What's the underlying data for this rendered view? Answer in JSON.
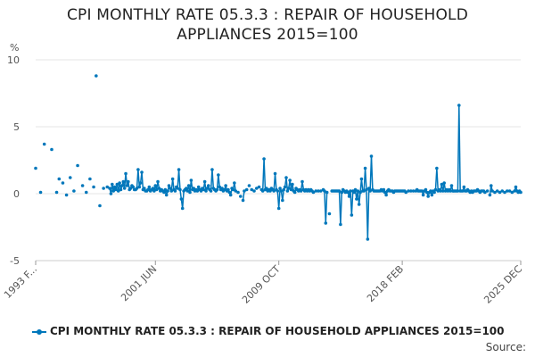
{
  "chart_data": {
    "type": "line",
    "title_lines": [
      "CPI MONTHLY RATE 05.3.3 : REPAIR OF HOUSEHOLD",
      "APPLIANCES 2015=100"
    ],
    "ylabel": "%",
    "ylim": [
      -5,
      10
    ],
    "yticks": [
      -5,
      0,
      5,
      10
    ],
    "xlim": [
      0,
      393
    ],
    "x_tick_labels": [
      {
        "index": 0,
        "label": "1993 F..."
      },
      {
        "index": 97,
        "label": "2001 JUN"
      },
      {
        "index": 197,
        "label": "2009 OCT"
      },
      {
        "index": 297,
        "label": "2018 FEB"
      },
      {
        "index": 393,
        "label": "2025 DEC"
      }
    ],
    "series": [
      {
        "name": "CPI MONTHLY RATE 05.3.3 : REPAIR OF HOUSEHOLD APPLIANCES 2015=100",
        "color": "#0077bb",
        "points": [
          [
            0,
            1.9
          ],
          [
            4,
            0.1
          ],
          [
            7,
            3.7
          ],
          [
            13,
            3.3
          ],
          [
            17,
            0.1
          ],
          [
            19,
            1.1
          ],
          [
            22,
            0.8
          ],
          [
            25,
            -0.1
          ],
          [
            28,
            1.2
          ],
          [
            31,
            0.2
          ],
          [
            34,
            2.1
          ],
          [
            38,
            0.6
          ],
          [
            41,
            0.1
          ],
          [
            44,
            1.1
          ],
          [
            47,
            0.5
          ],
          [
            49,
            8.8
          ],
          [
            52,
            -0.9
          ],
          [
            55,
            0.4
          ],
          [
            58,
            0.5
          ],
          [
            60,
            0.4
          ],
          [
            61,
            0.0
          ],
          [
            62,
            0.7
          ],
          [
            63,
            0.2
          ],
          [
            64,
            0.5
          ],
          [
            65,
            0.3
          ],
          [
            66,
            0.7
          ],
          [
            67,
            0.2
          ],
          [
            68,
            0.8
          ],
          [
            69,
            0.3
          ],
          [
            70,
            0.6
          ],
          [
            71,
            0.9
          ],
          [
            72,
            0.4
          ],
          [
            73,
            1.5
          ],
          [
            74,
            0.6
          ],
          [
            75,
            0.9
          ],
          [
            76,
            0.3
          ],
          [
            77,
            0.4
          ],
          [
            78,
            0.6
          ],
          [
            79,
            0.5
          ],
          [
            80,
            0.3
          ],
          [
            81,
            0.3
          ],
          [
            82,
            0.4
          ],
          [
            83,
            1.8
          ],
          [
            84,
            0.5
          ],
          [
            85,
            0.8
          ],
          [
            86,
            1.6
          ],
          [
            87,
            0.3
          ],
          [
            88,
            0.4
          ],
          [
            89,
            0.2
          ],
          [
            90,
            0.2
          ],
          [
            91,
            0.3
          ],
          [
            92,
            0.5
          ],
          [
            93,
            0.2
          ],
          [
            94,
            0.3
          ],
          [
            95,
            0.4
          ],
          [
            96,
            0.2
          ],
          [
            97,
            0.6
          ],
          [
            98,
            0.3
          ],
          [
            99,
            0.9
          ],
          [
            100,
            0.4
          ],
          [
            101,
            0.2
          ],
          [
            102,
            0.3
          ],
          [
            103,
            0.2
          ],
          [
            104,
            0.1
          ],
          [
            105,
            0.3
          ],
          [
            106,
            -0.1
          ],
          [
            107,
            0.2
          ],
          [
            108,
            0.6
          ],
          [
            109,
            0.4
          ],
          [
            110,
            0.2
          ],
          [
            111,
            1.1
          ],
          [
            112,
            0.3
          ],
          [
            113,
            0.2
          ],
          [
            114,
            0.5
          ],
          [
            115,
            0.4
          ],
          [
            116,
            1.8
          ],
          [
            117,
            0.3
          ],
          [
            118,
            -0.4
          ],
          [
            119,
            -1.1
          ],
          [
            120,
            0.2
          ],
          [
            121,
            0.3
          ],
          [
            122,
            0.4
          ],
          [
            123,
            0.2
          ],
          [
            124,
            0.6
          ],
          [
            125,
            0.1
          ],
          [
            126,
            1.0
          ],
          [
            127,
            0.3
          ],
          [
            128,
            0.4
          ],
          [
            129,
            0.2
          ],
          [
            130,
            0.3
          ],
          [
            131,
            0.2
          ],
          [
            132,
            0.5
          ],
          [
            133,
            0.3
          ],
          [
            134,
            0.2
          ],
          [
            135,
            0.4
          ],
          [
            136,
            0.3
          ],
          [
            137,
            0.9
          ],
          [
            138,
            0.2
          ],
          [
            139,
            0.4
          ],
          [
            140,
            0.6
          ],
          [
            141,
            0.3
          ],
          [
            142,
            0.2
          ],
          [
            143,
            1.8
          ],
          [
            144,
            0.4
          ],
          [
            145,
            0.3
          ],
          [
            146,
            0.2
          ],
          [
            147,
            0.3
          ],
          [
            148,
            1.4
          ],
          [
            149,
            0.5
          ],
          [
            150,
            0.3
          ],
          [
            151,
            0.4
          ],
          [
            152,
            0.2
          ],
          [
            153,
            0.3
          ],
          [
            154,
            0.6
          ],
          [
            155,
            0.2
          ],
          [
            156,
            0.3
          ],
          [
            157,
            0.1
          ],
          [
            158,
            -0.1
          ],
          [
            159,
            0.4
          ],
          [
            160,
            0.3
          ],
          [
            161,
            0.8
          ],
          [
            162,
            0.2
          ],
          [
            164,
            0.1
          ],
          [
            166,
            -0.2
          ],
          [
            168,
            -0.5
          ],
          [
            169,
            0.2
          ],
          [
            171,
            0.3
          ],
          [
            173,
            0.6
          ],
          [
            175,
            0.3
          ],
          [
            177,
            0.2
          ],
          [
            179,
            0.4
          ],
          [
            181,
            0.5
          ],
          [
            183,
            0.3
          ],
          [
            184,
            0.2
          ],
          [
            185,
            2.6
          ],
          [
            186,
            0.3
          ],
          [
            187,
            0.4
          ],
          [
            188,
            0.2
          ],
          [
            189,
            0.3
          ],
          [
            190,
            0.2
          ],
          [
            191,
            0.4
          ],
          [
            192,
            0.3
          ],
          [
            193,
            0.2
          ],
          [
            194,
            1.5
          ],
          [
            195,
            0.3
          ],
          [
            196,
            0.2
          ],
          [
            197,
            -1.1
          ],
          [
            198,
            0.4
          ],
          [
            199,
            0.2
          ],
          [
            200,
            -0.5
          ],
          [
            201,
            0.3
          ],
          [
            202,
            0.5
          ],
          [
            203,
            1.2
          ],
          [
            204,
            0.2
          ],
          [
            205,
            0.4
          ],
          [
            206,
            1.0
          ],
          [
            207,
            0.3
          ],
          [
            208,
            0.7
          ],
          [
            209,
            0.2
          ],
          [
            210,
            0.1
          ],
          [
            211,
            0.4
          ],
          [
            212,
            0.3
          ],
          [
            213,
            0.2
          ],
          [
            214,
            0.3
          ],
          [
            215,
            0.2
          ],
          [
            216,
            0.9
          ],
          [
            217,
            0.3
          ],
          [
            218,
            0.2
          ],
          [
            219,
            0.3
          ],
          [
            220,
            0.2
          ],
          [
            221,
            0.3
          ],
          [
            222,
            0.2
          ],
          [
            223,
            0.3
          ],
          [
            224,
            0.2
          ],
          [
            225,
            0.1
          ],
          [
            227,
            0.2
          ],
          [
            229,
            0.2
          ],
          [
            231,
            0.2
          ],
          [
            233,
            0.3
          ],
          [
            234,
            0.2
          ],
          [
            235,
            -2.2
          ],
          [
            236,
            0.1
          ],
          [
            238,
            -1.5
          ],
          [
            240,
            0.2
          ],
          [
            241,
            0.2
          ],
          [
            242,
            0.2
          ],
          [
            243,
            0.2
          ],
          [
            244,
            0.2
          ],
          [
            245,
            0.2
          ],
          [
            246,
            0.2
          ],
          [
            247,
            -2.3
          ],
          [
            248,
            0.1
          ],
          [
            249,
            0.3
          ],
          [
            250,
            0.2
          ],
          [
            251,
            0.1
          ],
          [
            252,
            0.2
          ],
          [
            253,
            0.1
          ],
          [
            254,
            -0.2
          ],
          [
            255,
            0.2
          ],
          [
            256,
            -1.6
          ],
          [
            257,
            0.2
          ],
          [
            258,
            0.1
          ],
          [
            259,
            0.3
          ],
          [
            260,
            -0.4
          ],
          [
            261,
            0.2
          ],
          [
            262,
            -0.8
          ],
          [
            263,
            0.1
          ],
          [
            264,
            1.1
          ],
          [
            265,
            0.2
          ],
          [
            266,
            0.2
          ],
          [
            267,
            1.9
          ],
          [
            268,
            0.3
          ],
          [
            269,
            -3.4
          ],
          [
            270,
            0.4
          ],
          [
            271,
            0.2
          ],
          [
            272,
            2.8
          ],
          [
            273,
            0.3
          ],
          [
            274,
            0.2
          ],
          [
            275,
            0.2
          ],
          [
            276,
            0.2
          ],
          [
            277,
            0.2
          ],
          [
            278,
            0.2
          ],
          [
            279,
            0.2
          ],
          [
            280,
            0.3
          ],
          [
            281,
            0.2
          ],
          [
            282,
            0.3
          ],
          [
            283,
            0.1
          ],
          [
            284,
            -0.1
          ],
          [
            285,
            0.2
          ],
          [
            286,
            0.3
          ],
          [
            287,
            0.2
          ],
          [
            288,
            0.2
          ],
          [
            289,
            0.2
          ],
          [
            290,
            0.1
          ],
          [
            291,
            0.2
          ],
          [
            292,
            0.2
          ],
          [
            293,
            0.2
          ],
          [
            294,
            0.2
          ],
          [
            295,
            0.2
          ],
          [
            296,
            0.2
          ],
          [
            297,
            0.2
          ],
          [
            298,
            0.2
          ],
          [
            299,
            0.2
          ],
          [
            300,
            0.1
          ],
          [
            302,
            0.2
          ],
          [
            304,
            0.2
          ],
          [
            306,
            0.2
          ],
          [
            308,
            0.2
          ],
          [
            309,
            0.3
          ],
          [
            310,
            0.2
          ],
          [
            311,
            0.2
          ],
          [
            312,
            0.2
          ],
          [
            313,
            0.2
          ],
          [
            314,
            -0.1
          ],
          [
            315,
            0.2
          ],
          [
            316,
            0.3
          ],
          [
            317,
            0.1
          ],
          [
            318,
            -0.2
          ],
          [
            319,
            0.1
          ],
          [
            320,
            0.2
          ],
          [
            321,
            -0.1
          ],
          [
            322,
            0.2
          ],
          [
            323,
            0.1
          ],
          [
            324,
            0.3
          ],
          [
            325,
            1.9
          ],
          [
            326,
            0.2
          ],
          [
            327,
            0.3
          ],
          [
            328,
            0.2
          ],
          [
            329,
            0.7
          ],
          [
            330,
            0.2
          ],
          [
            331,
            0.8
          ],
          [
            332,
            0.2
          ],
          [
            333,
            0.3
          ],
          [
            334,
            0.2
          ],
          [
            335,
            0.3
          ],
          [
            336,
            0.2
          ],
          [
            337,
            0.6
          ],
          [
            338,
            0.2
          ],
          [
            339,
            0.2
          ],
          [
            340,
            0.2
          ],
          [
            341,
            0.2
          ],
          [
            342,
            0.2
          ],
          [
            343,
            6.6
          ],
          [
            344,
            0.2
          ],
          [
            345,
            0.2
          ],
          [
            346,
            0.2
          ],
          [
            347,
            0.5
          ],
          [
            348,
            0.2
          ],
          [
            349,
            0.2
          ],
          [
            350,
            0.3
          ],
          [
            351,
            0.2
          ],
          [
            352,
            0.1
          ],
          [
            353,
            0.2
          ],
          [
            354,
            0.1
          ],
          [
            355,
            0.2
          ],
          [
            356,
            0.2
          ],
          [
            357,
            0.2
          ],
          [
            358,
            0.3
          ],
          [
            359,
            0.2
          ],
          [
            360,
            0.1
          ],
          [
            361,
            0.2
          ],
          [
            362,
            0.2
          ],
          [
            363,
            0.2
          ],
          [
            364,
            0.1
          ],
          [
            366,
            0.2
          ],
          [
            368,
            -0.1
          ],
          [
            369,
            0.6
          ],
          [
            370,
            0.2
          ],
          [
            372,
            0.1
          ],
          [
            374,
            0.2
          ],
          [
            376,
            0.1
          ],
          [
            378,
            0.2
          ],
          [
            380,
            0.1
          ],
          [
            382,
            0.2
          ],
          [
            384,
            0.2
          ],
          [
            386,
            0.1
          ],
          [
            388,
            0.2
          ],
          [
            389,
            0.5
          ],
          [
            390,
            0.2
          ],
          [
            391,
            0.1
          ],
          [
            392,
            0.2
          ],
          [
            393,
            0.1
          ]
        ]
      }
    ],
    "legend_label": "CPI MONTHLY RATE 05.3.3 : REPAIR OF HOUSEHOLD APPLIANCES 2015=100",
    "source_label": "Source:"
  }
}
